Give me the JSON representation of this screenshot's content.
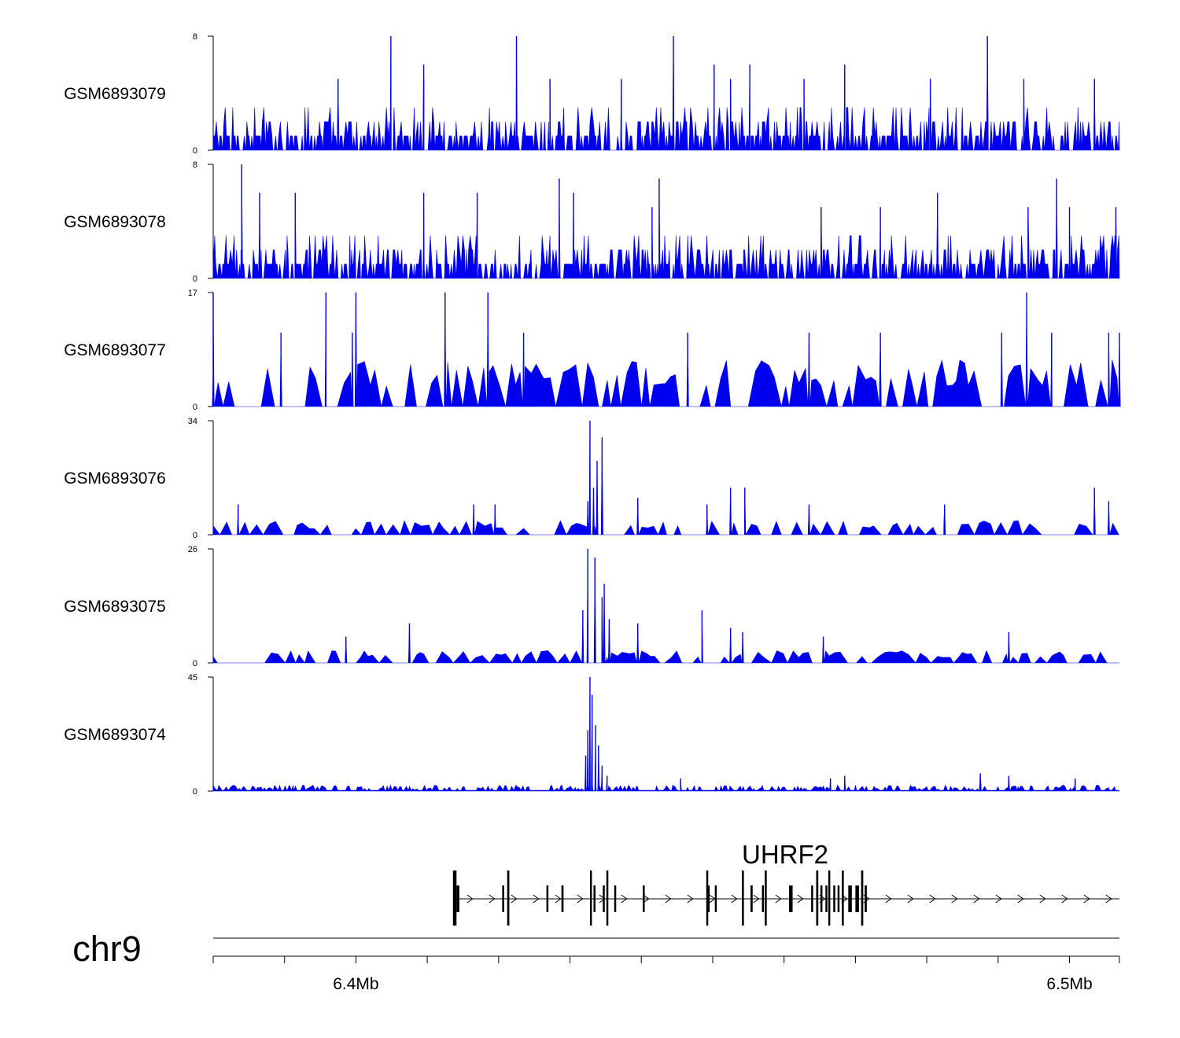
{
  "colors": {
    "signal": "#0000EE",
    "line": "#000000",
    "background": "#ffffff"
  },
  "chart_data": {
    "type": "area",
    "chromosome": "chr9",
    "x_range_mb": [
      6.38,
      6.507
    ],
    "tracks": [
      {
        "name": "GSM6893079",
        "ymax": 8,
        "ymin_label": "0",
        "ymax_label": "8",
        "baseline": 1,
        "density": "dense",
        "peaks": [
          [
            6.4049,
            8
          ],
          [
            6.4225,
            8
          ],
          [
            6.4445,
            8
          ],
          [
            6.4885,
            8
          ],
          [
            6.4095,
            6
          ],
          [
            6.4502,
            6
          ],
          [
            6.4552,
            6
          ],
          [
            6.4685,
            6
          ],
          [
            6.4095,
            5
          ],
          [
            6.3975,
            5
          ],
          [
            6.4272,
            5
          ],
          [
            6.4525,
            5
          ],
          [
            6.4628,
            5
          ],
          [
            6.4805,
            5
          ],
          [
            6.4936,
            5
          ],
          [
            6.5035,
            5
          ],
          [
            6.4372,
            5
          ]
        ]
      },
      {
        "name": "GSM6893078",
        "ymax": 8,
        "ymin_label": "0",
        "ymax_label": "8",
        "baseline": 1,
        "density": "dense",
        "peaks": [
          [
            6.384,
            8
          ],
          [
            6.4285,
            7
          ],
          [
            6.4425,
            7
          ],
          [
            6.4982,
            7
          ],
          [
            6.3865,
            6
          ],
          [
            6.3915,
            6
          ],
          [
            6.4095,
            6
          ],
          [
            6.417,
            6
          ],
          [
            6.4305,
            6
          ],
          [
            6.4815,
            6
          ],
          [
            6.4942,
            5
          ],
          [
            6.5,
            5
          ],
          [
            6.4652,
            5
          ],
          [
            6.4735,
            5
          ],
          [
            6.4415,
            5
          ],
          [
            6.5065,
            5
          ]
        ]
      },
      {
        "name": "GSM6893077",
        "ymax": 17,
        "ymin_label": "0",
        "ymax_label": "17",
        "baseline": 5,
        "density": "sparse",
        "peaks": [
          [
            6.38,
            17
          ],
          [
            6.3958,
            17
          ],
          [
            6.4,
            17
          ],
          [
            6.4125,
            17
          ],
          [
            6.4185,
            17
          ],
          [
            6.494,
            17
          ],
          [
            6.4235,
            11
          ],
          [
            6.3995,
            11
          ],
          [
            6.3895,
            11
          ],
          [
            6.4465,
            11
          ],
          [
            6.4635,
            11
          ],
          [
            6.4735,
            11
          ],
          [
            6.4905,
            11
          ],
          [
            6.4975,
            11
          ],
          [
            6.5055,
            11
          ],
          [
            6.507,
            11
          ]
        ]
      },
      {
        "name": "GSM6893076",
        "ymax": 34,
        "ymin_label": "0",
        "ymax_label": "34",
        "baseline": 3,
        "density": "sparse",
        "peaks": [
          [
            6.4328,
            34
          ],
          [
            6.4345,
            29
          ],
          [
            6.4338,
            22
          ],
          [
            6.4333,
            14
          ],
          [
            6.4395,
            11
          ],
          [
            6.4525,
            14
          ],
          [
            6.4545,
            14
          ],
          [
            6.4492,
            9
          ],
          [
            6.4635,
            9
          ],
          [
            6.4825,
            9
          ],
          [
            6.5035,
            14
          ],
          [
            6.5055,
            10
          ],
          [
            6.4195,
            9
          ],
          [
            6.4165,
            9
          ],
          [
            6.4325,
            10
          ],
          [
            6.3835,
            9
          ]
        ]
      },
      {
        "name": "GSM6893075",
        "ymax": 26,
        "ymin_label": "0",
        "ymax_label": "26",
        "baseline": 2,
        "density": "sparse",
        "peaks": [
          [
            6.4325,
            26
          ],
          [
            6.4335,
            24
          ],
          [
            6.4348,
            18
          ],
          [
            6.4318,
            12
          ],
          [
            6.4355,
            10
          ],
          [
            6.4395,
            9
          ],
          [
            6.4485,
            12
          ],
          [
            6.4525,
            8
          ],
          [
            6.4345,
            11
          ],
          [
            6.4542,
            7
          ],
          [
            6.4655,
            6
          ],
          [
            6.3986,
            6
          ],
          [
            6.4075,
            9
          ],
          [
            6.4345,
            15
          ],
          [
            6.4915,
            7
          ]
        ]
      },
      {
        "name": "GSM6893074",
        "ymax": 45,
        "ymin_label": "0",
        "ymax_label": "45",
        "baseline": 2,
        "density": "low",
        "peaks": [
          [
            6.4328,
            45
          ],
          [
            6.4331,
            38
          ],
          [
            6.4325,
            24
          ],
          [
            6.4336,
            26
          ],
          [
            6.434,
            18
          ],
          [
            6.4322,
            14
          ],
          [
            6.4345,
            10
          ],
          [
            6.4352,
            6
          ],
          [
            6.4455,
            5
          ],
          [
            6.4685,
            6
          ],
          [
            6.4875,
            7
          ],
          [
            6.4915,
            6
          ],
          [
            6.4665,
            5
          ],
          [
            6.5008,
            5
          ]
        ]
      }
    ],
    "gene": {
      "name": "UHRF2",
      "strand": "+",
      "start_mb": 6.4136,
      "end_mb": 6.507,
      "exons_mb": [
        [
          6.4136,
          6.4141
        ],
        [
          6.4141,
          6.4145
        ],
        [
          6.4205,
          6.4207
        ],
        [
          6.4212,
          6.4215
        ],
        [
          6.4267,
          6.4269
        ],
        [
          6.4288,
          6.4291
        ],
        [
          6.4328,
          6.433
        ],
        [
          6.4333,
          6.4334
        ],
        [
          6.4346,
          6.4348
        ],
        [
          6.4351,
          6.4352
        ],
        [
          6.4362,
          6.4363
        ],
        [
          6.4402,
          6.4404
        ],
        [
          6.4491,
          6.4492
        ],
        [
          6.4493,
          6.4494
        ],
        [
          6.4503,
          6.4505
        ],
        [
          6.4541,
          6.4543
        ],
        [
          6.4553,
          6.4556
        ],
        [
          6.4569,
          6.4571
        ],
        [
          6.4573,
          6.4574
        ],
        [
          6.4607,
          6.4612
        ],
        [
          6.4638,
          6.464
        ],
        [
          6.4645,
          6.4648
        ],
        [
          6.4651,
          6.4653
        ],
        [
          6.4658,
          6.466
        ],
        [
          6.4662,
          6.4663
        ],
        [
          6.4669,
          6.467
        ],
        [
          6.4675,
          6.4677
        ],
        [
          6.4681,
          6.4683
        ],
        [
          6.469,
          6.4695
        ],
        [
          6.47,
          6.4705
        ],
        [
          6.4708,
          6.4711
        ],
        [
          6.4713,
          6.4716
        ]
      ]
    },
    "axis": {
      "ticks_mb": [
        6.38,
        6.39,
        6.4,
        6.41,
        6.42,
        6.43,
        6.44,
        6.45,
        6.46,
        6.47,
        6.48,
        6.49,
        6.5,
        6.507
      ],
      "labels": [
        {
          "mb": 6.4,
          "text": "6.4Mb"
        },
        {
          "mb": 6.5,
          "text": "6.5Mb"
        }
      ]
    }
  }
}
